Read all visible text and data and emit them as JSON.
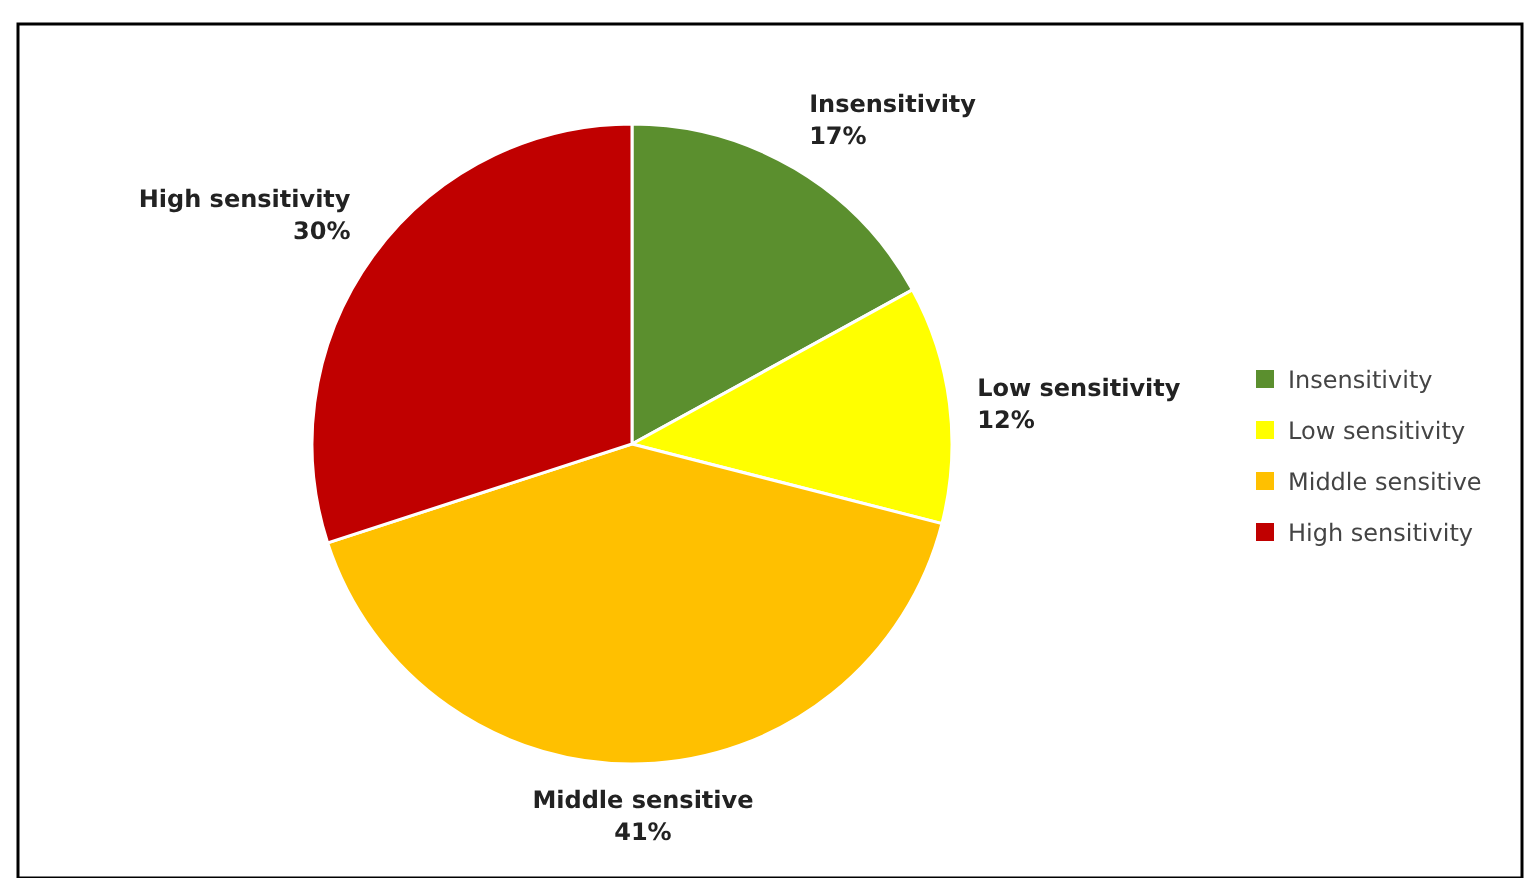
{
  "chart_data": {
    "type": "pie",
    "categories": [
      "Insensitivity",
      "Low sensitivity",
      "Middle sensitive",
      "High sensitivity"
    ],
    "values": [
      17,
      12,
      41,
      30
    ],
    "colors": [
      "#5b8f2e",
      "#ffff00",
      "#ffc000",
      "#c00000"
    ],
    "value_labels": [
      "17%",
      "12%",
      "41%",
      "30%"
    ],
    "legend": "right"
  }
}
